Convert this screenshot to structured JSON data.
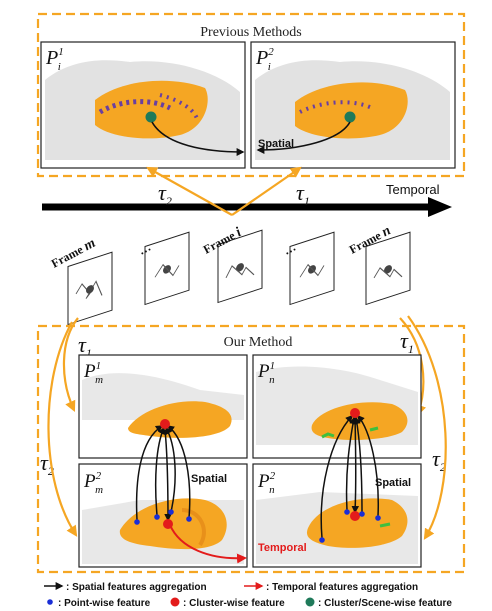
{
  "previous_methods": {
    "title": "Previous Methods",
    "panel_left_label": "P",
    "panel_left_sup": "1",
    "panel_left_sub": "i",
    "panel_right_label": "P",
    "panel_right_sup": "2",
    "panel_right_sub": "i",
    "spatial_label": "Spatial"
  },
  "timeline": {
    "tau2": "τ",
    "tau2_sub": "2",
    "tau1": "τ",
    "tau1_sub": "1",
    "temporal_label": "Temporal"
  },
  "frames": [
    {
      "prefix": "Frame ",
      "var": "m"
    },
    {
      "prefix": "…",
      "var": ""
    },
    {
      "prefix": "Frame ",
      "var": "i"
    },
    {
      "prefix": "…",
      "var": ""
    },
    {
      "prefix": "Frame ",
      "var": "n"
    }
  ],
  "our_method": {
    "title": "Our Method",
    "tau1_left": "τ",
    "tau1_left_sub": "1",
    "tau1_right": "τ",
    "tau1_right_sub": "1",
    "tau2_left": "τ",
    "tau2_left_sub": "2",
    "tau2_right": "τ",
    "tau2_right_sub": "2",
    "pm1": {
      "base": "P",
      "sup": "1",
      "sub": "m"
    },
    "pn1": {
      "base": "P",
      "sup": "1",
      "sub": "n"
    },
    "pm2": {
      "base": "P",
      "sup": "2",
      "sub": "m"
    },
    "pn2": {
      "base": "P",
      "sup": "2",
      "sub": "n"
    },
    "spatial_left": "Spatial",
    "spatial_right": "Spatial",
    "temporal": "Temporal"
  },
  "legend": {
    "spatial_agg": ": Spatial features aggregation",
    "temporal_agg": ": Temporal features aggregation",
    "point_wise": ": Point-wise feature",
    "cluster_wise": ": Cluster-wise feature",
    "scene_wise": ": Cluster/Scene-wise feature"
  },
  "colors": {
    "orange": "#F5A623",
    "orange_dark": "#E8901A",
    "gray_points": "#C8C8C8",
    "purple": "#6A3FA0",
    "blue": "#1A2ED6",
    "red": "#E31B1B",
    "teal": "#1F7A5A",
    "green": "#3FBF3F",
    "red_arrow": "#E31B1B",
    "black": "#111111"
  }
}
